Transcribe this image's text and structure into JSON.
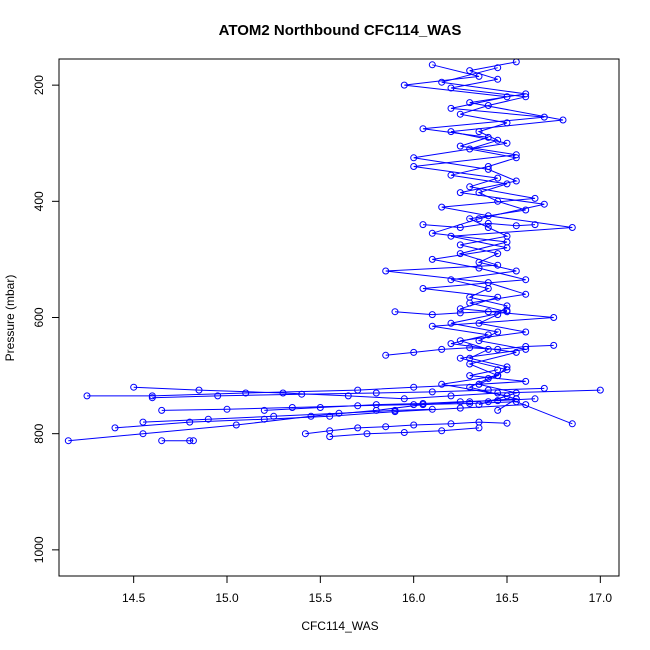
{
  "chart_data": {
    "type": "line",
    "title": "ATOM2 Northbound CFC114_WAS",
    "xlabel": "CFC114_WAS",
    "ylabel": "Pressure (mbar)",
    "xlim": [
      14.1,
      17.1
    ],
    "ylim": [
      1045,
      155
    ],
    "y_reversed": true,
    "x_ticks": [
      14.5,
      15.0,
      15.5,
      16.0,
      16.5,
      17.0
    ],
    "x_tick_labels": [
      "14.5",
      "15.0",
      "15.5",
      "16.0",
      "16.5",
      "17.0"
    ],
    "y_ticks": [
      200,
      400,
      600,
      800,
      1000
    ],
    "y_tick_labels": [
      "200",
      "400",
      "600",
      "800",
      "1000"
    ],
    "marker": "open-circle",
    "grid": false,
    "color": "#0000ff",
    "series": [
      {
        "x": [
          16.55,
          16.3,
          16.45,
          16.2,
          16.6,
          16.4,
          16.25,
          16.5,
          16.35,
          16.45,
          16.3,
          16.55,
          16.4,
          16.2,
          16.5,
          16.35,
          16.45,
          16.6,
          16.3,
          16.4,
          16.5,
          16.25,
          16.45,
          16.35,
          16.55,
          16.2,
          16.4,
          16.3,
          16.5,
          16.45,
          16.35,
          16.6,
          16.25,
          16.4,
          16.3,
          16.5,
          16.45,
          16.35,
          16.55,
          16.4
        ],
        "y": [
          160,
          175,
          190,
          205,
          220,
          235,
          250,
          265,
          280,
          295,
          310,
          325,
          340,
          355,
          370,
          385,
          400,
          415,
          430,
          445,
          460,
          475,
          490,
          505,
          520,
          535,
          550,
          565,
          580,
          595,
          610,
          625,
          640,
          655,
          670,
          685,
          700,
          715,
          730,
          745
        ]
      },
      {
        "x": [
          16.1,
          16.35,
          15.95,
          16.5,
          16.2,
          16.7,
          16.05,
          16.4,
          16.25,
          16.55,
          16.0,
          16.45,
          16.3,
          16.65,
          16.15,
          16.4,
          16.85,
          16.2,
          16.5,
          16.1,
          16.35,
          16.6,
          16.05,
          16.45,
          16.25,
          16.75,
          16.1,
          16.4,
          16.2,
          16.55,
          16.3,
          16.45,
          16.15,
          16.5,
          16.35
        ],
        "y": [
          165,
          185,
          200,
          220,
          240,
          255,
          275,
          290,
          305,
          320,
          340,
          360,
          375,
          395,
          410,
          425,
          445,
          460,
          480,
          500,
          515,
          535,
          550,
          565,
          585,
          600,
          615,
          630,
          645,
          660,
          680,
          700,
          715,
          735,
          750
        ]
      },
      {
        "x": [
          16.45,
          16.15,
          16.6,
          16.3,
          16.8,
          16.2,
          16.5,
          16.0,
          16.4,
          16.55,
          16.25,
          16.7,
          16.35,
          16.1,
          16.5,
          16.25,
          16.45,
          15.85,
          16.4,
          16.6,
          16.3,
          16.5,
          16.2,
          16.45,
          16.35,
          16.6,
          16.25,
          16.5,
          16.4,
          16.3,
          16.55,
          16.45
        ],
        "y": [
          170,
          195,
          215,
          230,
          260,
          280,
          300,
          325,
          345,
          365,
          385,
          405,
          430,
          455,
          470,
          490,
          510,
          520,
          540,
          560,
          575,
          590,
          610,
          625,
          640,
          655,
          670,
          690,
          705,
          720,
          740,
          760
        ]
      },
      {
        "x": [
          14.25,
          14.6,
          15.1,
          15.7,
          16.0,
          16.35,
          16.6,
          16.3,
          16.45
        ],
        "y": [
          735,
          735,
          730,
          725,
          720,
          715,
          710,
          700,
          690
        ]
      },
      {
        "x": [
          14.15,
          14.55,
          15.05,
          15.45,
          15.8,
          16.05,
          16.3,
          16.55
        ],
        "y": [
          812,
          800,
          785,
          770,
          760,
          750,
          745,
          740
        ]
      },
      {
        "x": [
          14.5,
          14.85,
          15.3,
          15.65,
          15.95,
          16.2,
          16.45,
          17.0
        ],
        "y": [
          720,
          725,
          730,
          735,
          740,
          735,
          730,
          725
        ]
      },
      {
        "x": [
          14.6,
          14.95,
          15.4,
          15.8,
          16.1,
          16.4,
          16.7
        ],
        "y": [
          738,
          735,
          732,
          730,
          728,
          725,
          722
        ]
      },
      {
        "x": [
          14.4,
          14.8,
          15.2,
          15.55,
          15.9,
          16.25,
          16.6
        ],
        "y": [
          790,
          780,
          775,
          770,
          762,
          756,
          750
        ]
      },
      {
        "x": [
          14.65,
          15.0,
          15.35,
          15.7,
          16.0,
          16.3,
          16.55,
          16.85
        ],
        "y": [
          760,
          758,
          755,
          752,
          750,
          748,
          745,
          783
        ]
      },
      {
        "x": [
          15.42,
          15.55,
          15.7,
          15.85,
          16.0,
          16.2,
          16.35,
          16.5
        ],
        "y": [
          800,
          795,
          790,
          788,
          785,
          783,
          780,
          782
        ]
      },
      {
        "x": [
          14.55,
          14.9,
          15.25,
          15.6,
          15.9,
          16.1
        ],
        "y": [
          780,
          775,
          770,
          765,
          760,
          758
        ]
      },
      {
        "x": [
          14.65,
          14.8,
          14.82
        ],
        "y": [
          812,
          812,
          812
        ]
      },
      {
        "x": [
          15.2,
          15.5,
          15.8,
          16.05,
          16.25,
          16.45,
          16.65
        ],
        "y": [
          760,
          755,
          750,
          748,
          745,
          743,
          740
        ]
      },
      {
        "x": [
          15.85,
          16.0,
          16.15,
          16.3,
          16.45,
          16.6,
          16.75
        ],
        "y": [
          665,
          660,
          655,
          652,
          655,
          650,
          648
        ]
      },
      {
        "x": [
          15.9,
          16.1,
          16.25,
          16.4,
          16.5
        ],
        "y": [
          590,
          595,
          592,
          590,
          588
        ]
      },
      {
        "x": [
          16.05,
          16.25,
          16.4,
          16.55,
          16.65
        ],
        "y": [
          440,
          445,
          438,
          442,
          440
        ]
      },
      {
        "x": [
          15.55,
          15.75,
          15.95,
          16.15,
          16.35
        ],
        "y": [
          805,
          800,
          798,
          795,
          790
        ]
      }
    ]
  }
}
